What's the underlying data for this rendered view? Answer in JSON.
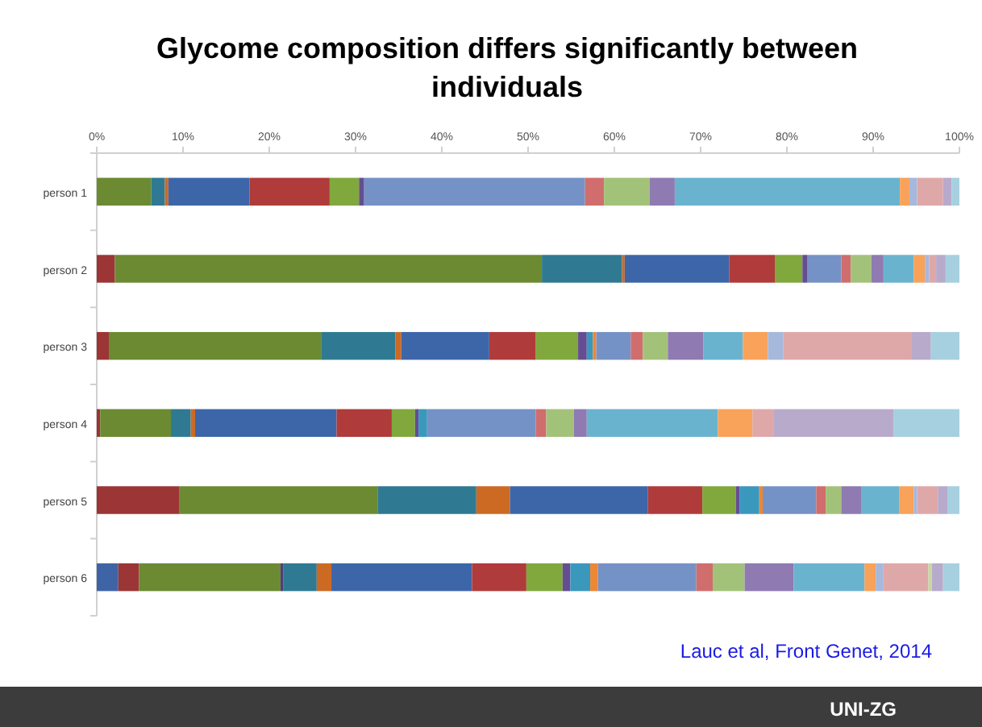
{
  "chart_data": {
    "type": "bar",
    "orientation": "horizontal",
    "stacked": true,
    "title": "Glycome composition differs significantly between individuals",
    "categories": [
      "person 1",
      "person 2",
      "person 3",
      "person 4",
      "person 5",
      "person 6"
    ],
    "xlim": [
      0,
      100
    ],
    "xticks": [
      {
        "value": 0,
        "label": "0%"
      },
      {
        "value": 10,
        "label": "10%"
      },
      {
        "value": 20,
        "label": "20%"
      },
      {
        "value": 30,
        "label": "30%"
      },
      {
        "value": 40,
        "label": "40%"
      },
      {
        "value": 50,
        "label": "50%"
      },
      {
        "value": 60,
        "label": "60%"
      },
      {
        "value": 70,
        "label": "70%"
      },
      {
        "value": 80,
        "label": "80%"
      },
      {
        "value": 90,
        "label": "90%"
      },
      {
        "value": 100,
        "label": "100%"
      }
    ],
    "grid": false,
    "series": [
      {
        "color": "#3f64a6",
        "values": [
          0,
          0,
          0,
          0,
          0,
          2.5
        ]
      },
      {
        "color": "#9c3535",
        "values": [
          0,
          2.1,
          1.4,
          0.4,
          9.6,
          2.4
        ]
      },
      {
        "color": "#6b8a32",
        "values": [
          6.3,
          49.5,
          24.6,
          8.2,
          23.0,
          16.4
        ]
      },
      {
        "color": "#4e3f7e",
        "values": [
          0,
          0,
          0,
          0,
          0,
          0.3
        ]
      },
      {
        "color": "#2f7a92",
        "values": [
          1.6,
          9.3,
          8.6,
          2.3,
          11.4,
          3.9
        ]
      },
      {
        "color": "#cc6a24",
        "values": [
          0.4,
          0.3,
          0.7,
          0.5,
          3.9,
          1.7
        ]
      },
      {
        "color": "#3d66a9",
        "values": [
          9.4,
          12.1,
          10.2,
          16.4,
          16.0,
          16.3
        ]
      },
      {
        "color": "#b03b3b",
        "values": [
          9.3,
          5.3,
          5.4,
          6.4,
          6.3,
          6.3
        ]
      },
      {
        "color": "#80a83c",
        "values": [
          3.4,
          3.2,
          4.9,
          2.7,
          3.9,
          4.2
        ]
      },
      {
        "color": "#654d93",
        "values": [
          0.6,
          0.6,
          1.0,
          0.4,
          0.4,
          0.9
        ]
      },
      {
        "color": "#3a98bd",
        "values": [
          0,
          0,
          0.7,
          1.0,
          2.3,
          2.3
        ]
      },
      {
        "color": "#ec8735",
        "values": [
          0,
          0,
          0.4,
          0,
          0.4,
          0.9
        ]
      },
      {
        "color": "#7592c6",
        "values": [
          25.6,
          3.9,
          4.0,
          12.6,
          6.2,
          11.4
        ]
      },
      {
        "color": "#d06d6d",
        "values": [
          2.2,
          1.1,
          1.4,
          1.2,
          1.1,
          1.9
        ]
      },
      {
        "color": "#a3c279",
        "values": [
          5.3,
          2.4,
          2.9,
          3.2,
          1.8,
          3.7
        ]
      },
      {
        "color": "#8f7ab1",
        "values": [
          2.9,
          1.4,
          4.1,
          1.5,
          2.3,
          5.7
        ]
      },
      {
        "color": "#6ab3cf",
        "values": [
          26.1,
          3.5,
          4.6,
          15.2,
          4.4,
          8.2
        ]
      },
      {
        "color": "#f8a25a",
        "values": [
          1.1,
          1.3,
          2.9,
          4.0,
          1.7,
          1.3
        ]
      },
      {
        "color": "#a6b8dc",
        "values": [
          0.9,
          0.5,
          1.8,
          0,
          0.4,
          0.9
        ]
      },
      {
        "color": "#dfa8a8",
        "values": [
          3.0,
          0.8,
          14.8,
          2.5,
          2.4,
          5.2
        ]
      },
      {
        "color": "#c5d8a2",
        "values": [
          0,
          0,
          0,
          0,
          0,
          0.4
        ]
      },
      {
        "color": "#b8aacb",
        "values": [
          1.0,
          1.1,
          2.3,
          13.9,
          1.1,
          1.3
        ]
      },
      {
        "color": "#a6d0df",
        "values": [
          0.9,
          1.6,
          3.3,
          7.6,
          1.4,
          1.9
        ]
      }
    ],
    "annotations": [
      "Lauc et al, Front Genet, 2014",
      "UNI-ZG"
    ]
  }
}
